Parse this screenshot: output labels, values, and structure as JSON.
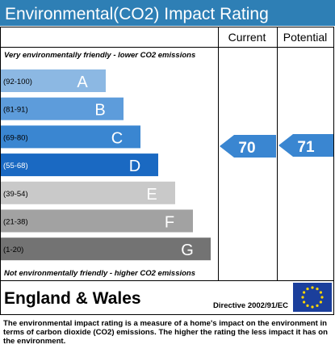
{
  "header": {
    "title": "Environmental(CO2) Impact Rating"
  },
  "columns": {
    "current": "Current",
    "potential": "Potential"
  },
  "top_note": "Very environmentally friendly - lower CO2 emissions",
  "bottom_note": "Not environmentally friendly - higher CO2 emissions",
  "bands": [
    {
      "range": "(92-100)",
      "letter": "A",
      "color": "#8cb8e3"
    },
    {
      "range": "(81-91)",
      "letter": "B",
      "color": "#5d9cdb"
    },
    {
      "range": "(69-80)",
      "letter": "C",
      "color": "#3a86d1"
    },
    {
      "range": "(55-68)",
      "letter": "D",
      "color": "#1a69c2"
    },
    {
      "range": "(39-54)",
      "letter": "E",
      "color": "#c9c9c9"
    },
    {
      "range": "(21-38)",
      "letter": "F",
      "color": "#a2a2a2"
    },
    {
      "range": "(1-20)",
      "letter": "G",
      "color": "#737373"
    }
  ],
  "ratings": {
    "current": "70",
    "potential": "71"
  },
  "footer": {
    "region": "England & Wales",
    "directive": "Directive 2002/91/EC",
    "description": "The environmental impact rating is a measure of a home's impact on the environment in terms of carbon dioxide (CO2) emissions. The higher the rating the less impact it has on the environment."
  }
}
